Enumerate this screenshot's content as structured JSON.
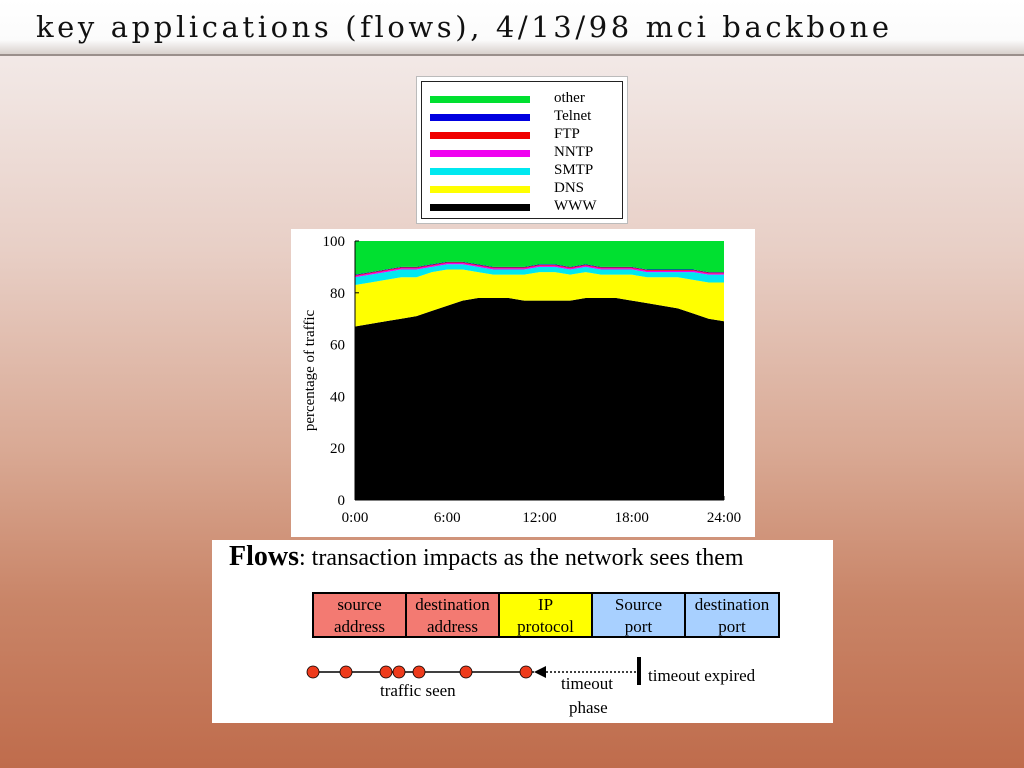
{
  "slide": {
    "title": "key applications (flows), 4/13/98 mci backbone"
  },
  "legend": {
    "items": [
      {
        "label": "other",
        "color": "#00e030"
      },
      {
        "label": "Telnet",
        "color": "#0000e0"
      },
      {
        "label": "FTP",
        "color": "#f00000"
      },
      {
        "label": "NNTP",
        "color": "#f000f0"
      },
      {
        "label": "SMTP",
        "color": "#00e8f0"
      },
      {
        "label": "DNS",
        "color": "#ffff00"
      },
      {
        "label": "WWW",
        "color": "#000000"
      }
    ]
  },
  "chart_data": {
    "type": "area",
    "stacked": true,
    "title": "",
    "xlabel": "",
    "ylabel": "percentage of traffic",
    "xlim": [
      0,
      24
    ],
    "ylim": [
      0,
      100
    ],
    "x_ticks": [
      "0:00",
      "6:00",
      "12:00",
      "18:00",
      "24:00"
    ],
    "y_ticks": [
      "0",
      "20",
      "40",
      "60",
      "80",
      "100"
    ],
    "x": [
      0,
      1,
      2,
      3,
      4,
      5,
      6,
      7,
      8,
      9,
      10,
      11,
      12,
      13,
      14,
      15,
      16,
      17,
      18,
      19,
      20,
      21,
      22,
      23,
      24
    ],
    "series": [
      {
        "name": "WWW",
        "color": "#000000",
        "values": [
          67,
          68,
          69,
          70,
          71,
          73,
          75,
          77,
          78,
          78,
          78,
          77,
          77,
          77,
          77,
          78,
          78,
          78,
          77,
          76,
          75,
          74,
          72,
          70,
          69
        ]
      },
      {
        "name": "DNS",
        "color": "#ffff00",
        "values": [
          16,
          16,
          16,
          16,
          15,
          15,
          14,
          12,
          10,
          9,
          9,
          10,
          11,
          11,
          10,
          10,
          9,
          9,
          10,
          10,
          11,
          12,
          13,
          14,
          15
        ]
      },
      {
        "name": "SMTP",
        "color": "#00e8f0",
        "values": [
          3,
          3,
          3,
          3,
          3,
          2,
          2,
          2,
          2,
          2,
          2,
          2,
          2,
          2,
          2,
          2,
          2,
          2,
          2,
          2,
          2,
          2,
          3,
          3,
          3
        ]
      },
      {
        "name": "NNTP",
        "color": "#f000f0",
        "values": [
          0.5,
          0.5,
          0.5,
          0.5,
          0.5,
          0.5,
          0.5,
          0.5,
          0.5,
          0.5,
          0.5,
          0.5,
          0.5,
          0.5,
          0.5,
          0.5,
          0.5,
          0.5,
          0.5,
          0.5,
          0.5,
          0.5,
          0.5,
          0.5,
          0.5
        ]
      },
      {
        "name": "FTP",
        "color": "#f00000",
        "values": [
          0.3,
          0.3,
          0.3,
          0.3,
          0.3,
          0.3,
          0.3,
          0.3,
          0.3,
          0.3,
          0.3,
          0.3,
          0.3,
          0.3,
          0.3,
          0.3,
          0.3,
          0.3,
          0.3,
          0.3,
          0.3,
          0.3,
          0.3,
          0.3,
          0.3
        ]
      },
      {
        "name": "Telnet",
        "color": "#0000e0",
        "values": [
          0.2,
          0.2,
          0.2,
          0.2,
          0.2,
          0.2,
          0.2,
          0.2,
          0.2,
          0.2,
          0.2,
          0.2,
          0.2,
          0.2,
          0.2,
          0.2,
          0.2,
          0.2,
          0.2,
          0.2,
          0.2,
          0.2,
          0.2,
          0.2,
          0.2
        ]
      },
      {
        "name": "other",
        "color": "#00e030",
        "values": [
          13,
          12,
          11,
          10,
          10,
          9,
          8,
          8,
          9,
          10,
          10,
          10,
          9,
          9,
          10,
          9,
          10,
          10,
          10,
          11,
          11,
          11,
          11,
          12,
          12
        ]
      }
    ]
  },
  "flows": {
    "heading_bold": "Flows",
    "heading_rest": ": transaction impacts as the network sees them",
    "fields": [
      {
        "line1": "source",
        "line2": "address",
        "color": "#f37a72"
      },
      {
        "line1": "destination",
        "line2": "address",
        "color": "#f37a72"
      },
      {
        "line1": "IP",
        "line2": "protocol",
        "color": "#ffff00"
      },
      {
        "line1": "Source",
        "line2": "port",
        "color": "#a8d0ff"
      },
      {
        "line1": "destination",
        "line2": "port",
        "color": "#a8d0ff"
      }
    ],
    "traffic_label": "traffic seen",
    "timeout_line1": "timeout",
    "timeout_line2": "phase",
    "expired_label": "timeout expired",
    "dot_color": "#ee3b1c"
  }
}
